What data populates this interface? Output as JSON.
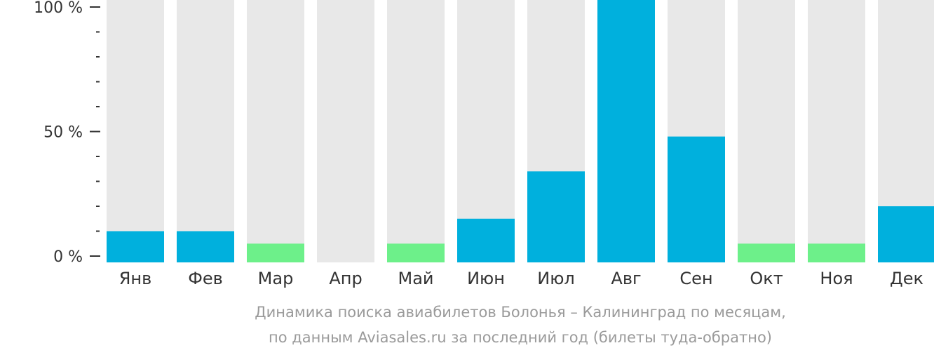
{
  "chart_data": {
    "type": "bar",
    "categories": [
      "Янв",
      "Фев",
      "Мар",
      "Апр",
      "Май",
      "Июн",
      "Июл",
      "Авг",
      "Сен",
      "Окт",
      "Ноя",
      "Дек"
    ],
    "values": [
      10,
      10,
      5,
      0,
      5,
      15,
      34,
      100,
      48,
      5,
      5,
      20
    ],
    "bar_colors": [
      "#00b0dd",
      "#00b0dd",
      "#6df08a",
      "#00b0dd",
      "#6df08a",
      "#00b0dd",
      "#00b0dd",
      "#00b0dd",
      "#00b0dd",
      "#6df08a",
      "#6df08a",
      "#00b0dd"
    ],
    "track_color": "#e8e8e8",
    "ylim": [
      0,
      100
    ],
    "yticks": [
      {
        "value": 0,
        "label": "0 %"
      },
      {
        "value": 50,
        "label": "50 %"
      },
      {
        "value": 100,
        "label": "100 %"
      }
    ],
    "minor_tick_step": 10,
    "caption": [
      "Динамика поиска авиабилетов Болонья – Калининград по месяцам,",
      "по данным Aviasales.ru за последний год (билеты туда-обратно)"
    ],
    "grid": false,
    "legend": "none"
  }
}
